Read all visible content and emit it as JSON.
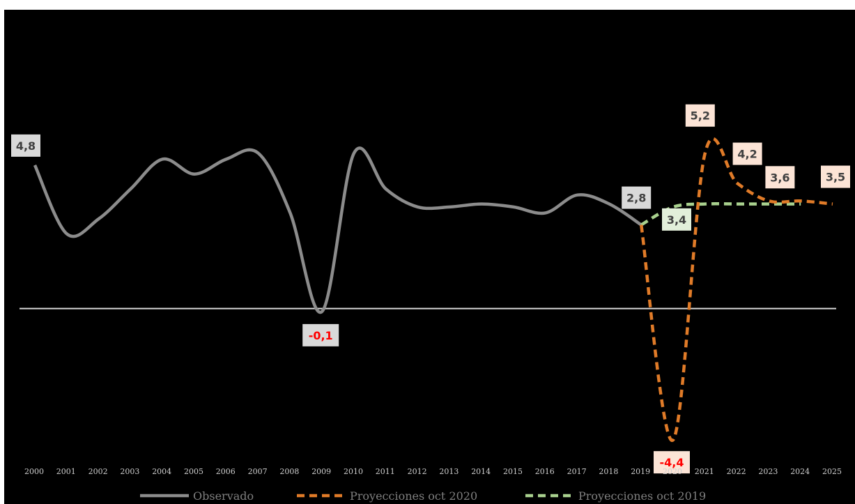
{
  "chart_data": {
    "type": "line",
    "categories": [
      "2000",
      "2001",
      "2002",
      "2003",
      "2004",
      "2005",
      "2006",
      "2007",
      "2008",
      "2009",
      "2010",
      "2011",
      "2012",
      "2013",
      "2014",
      "2015",
      "2016",
      "2017",
      "2018",
      "2019",
      "2020",
      "2021",
      "2022",
      "2023",
      "2024",
      "2025"
    ],
    "series": [
      {
        "name": "Observado",
        "color": "#8c8c8c",
        "dash": "solid",
        "x": [
          "2000",
          "2001",
          "2002",
          "2003",
          "2004",
          "2005",
          "2006",
          "2007",
          "2008",
          "2009",
          "2010",
          "2011",
          "2012",
          "2013",
          "2014",
          "2015",
          "2016",
          "2017",
          "2018",
          "2019"
        ],
        "values": [
          4.8,
          2.5,
          3.0,
          4.0,
          5.0,
          4.5,
          5.0,
          5.2,
          3.2,
          -0.1,
          5.2,
          4.0,
          3.4,
          3.4,
          3.5,
          3.4,
          3.2,
          3.8,
          3.5,
          2.8
        ]
      },
      {
        "name": "Proyecciones oct 2020",
        "color": "#e07b28",
        "dash": "dashed",
        "x": [
          "2019",
          "2020",
          "2021",
          "2022",
          "2023",
          "2024",
          "2025"
        ],
        "values": [
          2.8,
          -4.4,
          5.2,
          4.2,
          3.6,
          3.6,
          3.5
        ]
      },
      {
        "name": "Proyecciones oct 2019",
        "color": "#a9d18e",
        "dash": "dashed",
        "x": [
          "2019",
          "2020",
          "2021",
          "2022",
          "2023",
          "2024"
        ],
        "values": [
          2.8,
          3.4,
          3.5,
          3.5,
          3.5,
          3.5
        ]
      }
    ],
    "labels": [
      {
        "text": "4,8",
        "x": "2000",
        "value": 4.8,
        "text_color": "#404040",
        "bg": "#d9d9d9",
        "pos": "above"
      },
      {
        "text": "-0,1",
        "x": "2009",
        "value": -0.1,
        "text_color": "#ff0000",
        "bg": "#d9d9d9",
        "pos": "below"
      },
      {
        "text": "2,8",
        "x": "2019",
        "value": 2.8,
        "text_color": "#404040",
        "bg": "#d9d9d9",
        "pos": "above"
      },
      {
        "text": "3,4",
        "x": "2020",
        "value": 3.4,
        "text_color": "#404040",
        "bg": "#e2efda",
        "pos": "below"
      },
      {
        "text": "-4,4",
        "x": "2020",
        "value": -4.4,
        "text_color": "#ff0000",
        "bg": "#fce4d6",
        "pos": "below"
      },
      {
        "text": "5,2",
        "x": "2021",
        "value": 5.2,
        "text_color": "#404040",
        "bg": "#fce4d6",
        "pos": "above"
      },
      {
        "text": "4,2",
        "x": "2022",
        "value": 4.2,
        "text_color": "#404040",
        "bg": "#fce4d6",
        "pos": "above"
      },
      {
        "text": "3,6",
        "x": "2023",
        "value": 3.6,
        "text_color": "#404040",
        "bg": "#fce4d6",
        "pos": "above"
      },
      {
        "text": "3,5",
        "x": "2025",
        "value": 3.5,
        "text_color": "#404040",
        "bg": "#fce4d6",
        "pos": "above"
      }
    ],
    "ylim": [
      -5.4,
      10.0
    ],
    "zero_line": true,
    "grid": false,
    "legend": {
      "position": "bottom"
    },
    "title": "",
    "xlabel": "",
    "ylabel": ""
  }
}
